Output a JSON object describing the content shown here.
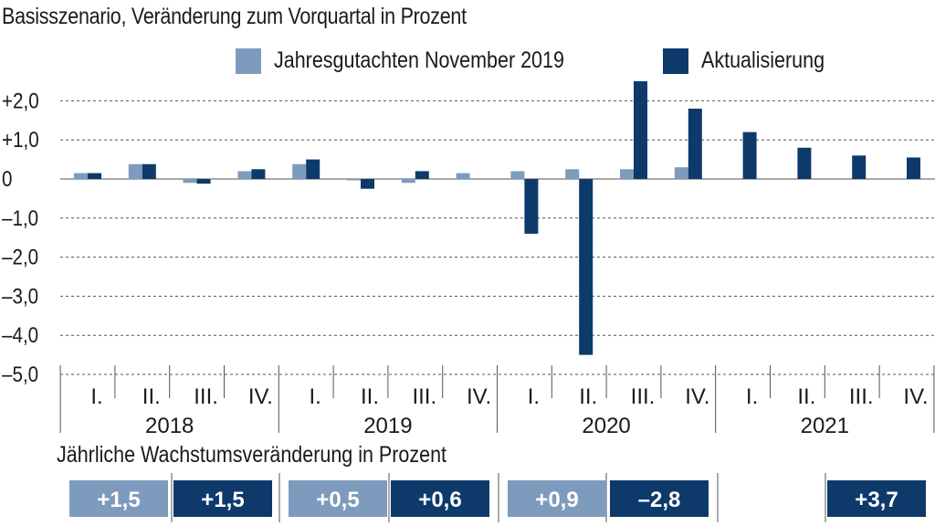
{
  "colors": {
    "old": "#7d9bbd",
    "new": "#0d3a6b",
    "grid": "#555555",
    "text": "#1a1a1a",
    "box_text": "#ffffff"
  },
  "chart_data": {
    "type": "bar",
    "title": "Basisszenario, Veränderung zum Vorquartal in Prozent",
    "ylim": [
      -5.0,
      2.5
    ],
    "yticks": [
      2.0,
      1.0,
      0,
      -1.0,
      -2.0,
      -3.0,
      -4.0,
      -5.0
    ],
    "ytick_labels": [
      "+2,0",
      "+1,0",
      "0",
      "–1,0",
      "–2,0",
      "–3,0",
      "–4,0",
      "–5,0"
    ],
    "grid": "horizontal dashed",
    "legend_position": "top",
    "years": [
      "2018",
      "2019",
      "2020",
      "2021"
    ],
    "categories": [
      "I.",
      "II.",
      "III.",
      "IV.",
      "I.",
      "II.",
      "III.",
      "IV.",
      "I.",
      "II.",
      "III.",
      "IV.",
      "I.",
      "II.",
      "III.",
      "IV."
    ],
    "series": [
      {
        "name": "Jahresgutachten November 2019",
        "color": "#7d9bbd",
        "values": [
          0.15,
          0.38,
          -0.1,
          0.2,
          0.38,
          -0.03,
          -0.1,
          0.15,
          0.2,
          0.25,
          0.25,
          0.3,
          null,
          null,
          null,
          null
        ]
      },
      {
        "name": "Aktualisierung",
        "color": "#0d3a6b",
        "values": [
          0.15,
          0.38,
          -0.12,
          0.25,
          0.5,
          -0.25,
          0.2,
          null,
          -1.4,
          -4.5,
          2.5,
          1.8,
          1.2,
          0.8,
          0.6,
          0.55
        ]
      }
    ]
  },
  "annual": {
    "title": "Jährliche Wachstumsveränderung in Prozent",
    "boxes": [
      {
        "label": "+1,5",
        "kind": "old"
      },
      {
        "label": "+1,5",
        "kind": "new"
      },
      {
        "label": "+0,5",
        "kind": "old"
      },
      {
        "label": "+0,6",
        "kind": "new"
      },
      {
        "label": "+0,9",
        "kind": "old"
      },
      {
        "label": "–2,8",
        "kind": "new"
      },
      {
        "label": "+3,7",
        "kind": "new"
      }
    ]
  }
}
